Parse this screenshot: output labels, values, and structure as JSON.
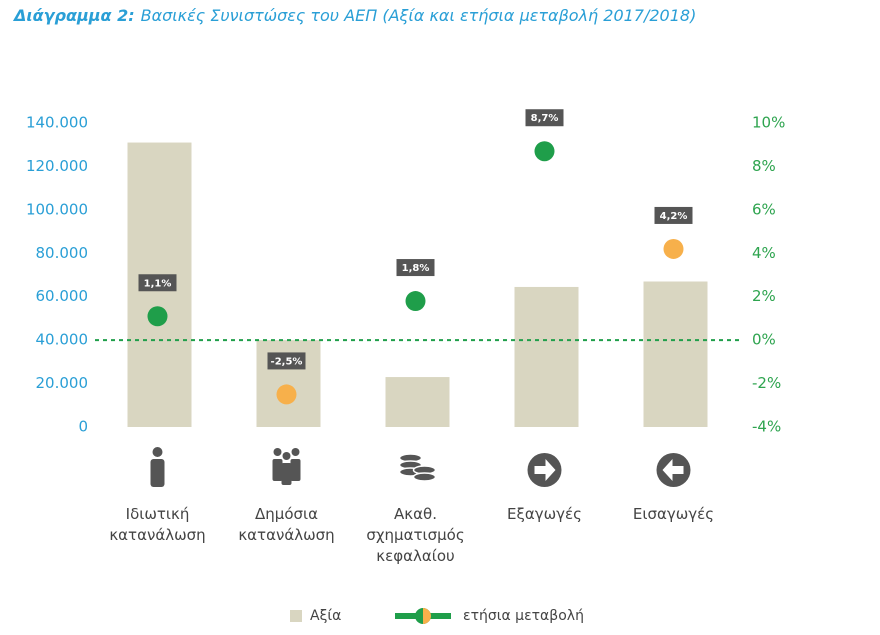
{
  "chart_data": {
    "type": "bar",
    "title_label": "Διάγραμμα 2:",
    "title": "Βασικές Συνιστώσες του ΑΕΠ (Αξία και ετήσια μεταβολή 2017/2018)",
    "categories": [
      "Ιδιωτική κατανάλωση",
      "Δημόσια κατανάλωση",
      "Ακαθ. σχηματισμός κεφαλαίου",
      "Εξαγωγές",
      "Εισαγωγές"
    ],
    "series": [
      {
        "name": "Αξία",
        "type": "bar",
        "color": "#d9d6c1",
        "values": [
          131000,
          40000,
          23000,
          64500,
          67000
        ]
      },
      {
        "name": "ετήσια μεταβολή",
        "type": "scatter",
        "axis": "y2",
        "color": "#1f9e4a",
        "colors": [
          "#1f9e4a",
          "#f7b04b",
          "#1f9e4a",
          "#1f9e4a",
          "#f7b04b"
        ],
        "values": [
          1.1,
          -2.5,
          1.8,
          8.7,
          4.2
        ],
        "value_labels": [
          "1,1%",
          "-2,5%",
          "1,8%",
          "8,7%",
          "4,2%"
        ]
      }
    ],
    "ylim": [
      0,
      140000
    ],
    "yticks": [
      0,
      {
        "value": 20000,
        "label": "20.000"
      },
      {
        "value": 40000,
        "label": "40.000"
      },
      {
        "value": 60000,
        "label": "60.000"
      },
      {
        "value": 80000,
        "label": "80.000"
      },
      {
        "value": 100000,
        "label": "100.000"
      },
      {
        "value": 120000,
        "label": "120.000"
      },
      {
        "value": 140000,
        "label": "140.000"
      }
    ],
    "y2lim": [
      -4,
      10
    ],
    "y2ticks": [
      {
        "value": -4,
        "label": "-4%"
      },
      {
        "value": -2,
        "label": "-2%"
      },
      {
        "value": 0,
        "label": "0%"
      },
      {
        "value": 2,
        "label": "2%"
      },
      {
        "value": 4,
        "label": "4%"
      },
      {
        "value": 6,
        "label": "6%"
      },
      {
        "value": 8,
        "label": "8%"
      },
      {
        "value": 10,
        "label": "10%"
      }
    ],
    "reference_line": {
      "axis": "y2",
      "value": 0,
      "color": "#1f9e4a",
      "style": "dashed"
    }
  }
}
